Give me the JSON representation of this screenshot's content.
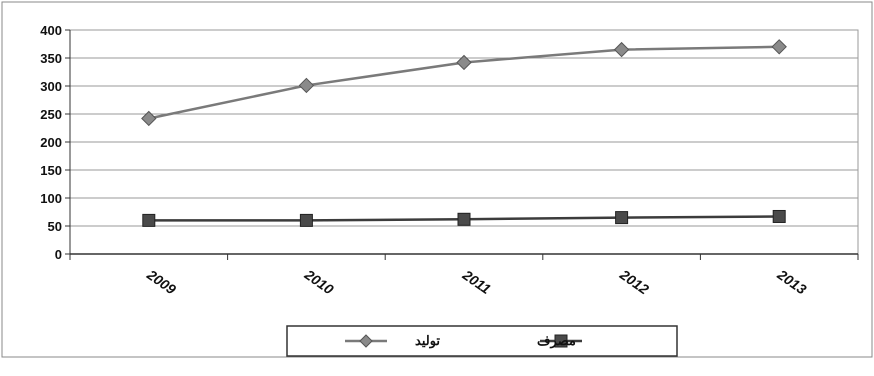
{
  "chart_data": {
    "type": "line",
    "categories": [
      "2009",
      "2010",
      "2011",
      "2012",
      "2013"
    ],
    "series": [
      {
        "name": "تولید",
        "values": [
          242,
          301,
          342,
          365,
          370
        ],
        "color": "#7a7a7a",
        "marker": "diamond"
      },
      {
        "name": "مصرف",
        "values": [
          60,
          60,
          62,
          65,
          67
        ],
        "color": "#3c3c3c",
        "marker": "square"
      }
    ],
    "yticks": [
      "0",
      "50",
      "100",
      "150",
      "200",
      "250",
      "300",
      "350",
      "400"
    ],
    "ylim": [
      0,
      400
    ],
    "grid": true,
    "legend_position": "bottom"
  }
}
